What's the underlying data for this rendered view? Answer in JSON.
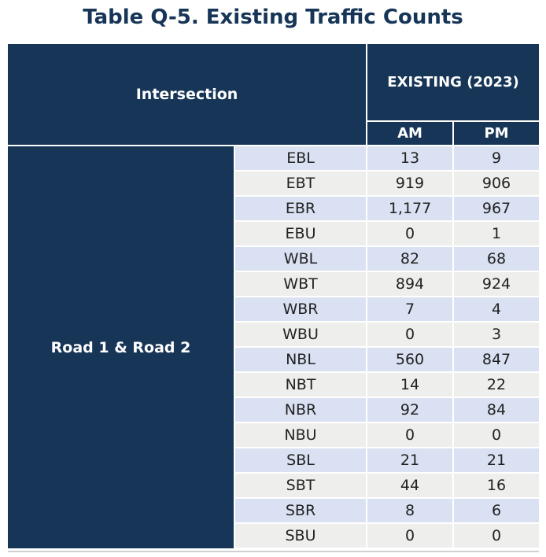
{
  "title": "Table Q-5. Existing Traffic Counts",
  "table": {
    "header": {
      "intersection": "Intersection",
      "existing": "EXISTING (2023)",
      "am": "AM",
      "pm": "PM"
    },
    "intersection_name": "Road 1 & Road 2",
    "rows": [
      {
        "movement": "EBL",
        "am": "13",
        "pm": "9"
      },
      {
        "movement": "EBT",
        "am": "919",
        "pm": "906"
      },
      {
        "movement": "EBR",
        "am": "1,177",
        "pm": "967"
      },
      {
        "movement": "EBU",
        "am": "0",
        "pm": "1"
      },
      {
        "movement": "WBL",
        "am": "82",
        "pm": "68"
      },
      {
        "movement": "WBT",
        "am": "894",
        "pm": "924"
      },
      {
        "movement": "WBR",
        "am": "7",
        "pm": "4"
      },
      {
        "movement": "WBU",
        "am": "0",
        "pm": "3"
      },
      {
        "movement": "NBL",
        "am": "560",
        "pm": "847"
      },
      {
        "movement": "NBT",
        "am": "14",
        "pm": "22"
      },
      {
        "movement": "NBR",
        "am": "92",
        "pm": "84"
      },
      {
        "movement": "NBU",
        "am": "0",
        "pm": "0"
      },
      {
        "movement": "SBL",
        "am": "21",
        "pm": "21"
      },
      {
        "movement": "SBT",
        "am": "44",
        "pm": "16"
      },
      {
        "movement": "SBR",
        "am": "8",
        "pm": "6"
      },
      {
        "movement": "SBU",
        "am": "0",
        "pm": "0"
      }
    ]
  }
}
